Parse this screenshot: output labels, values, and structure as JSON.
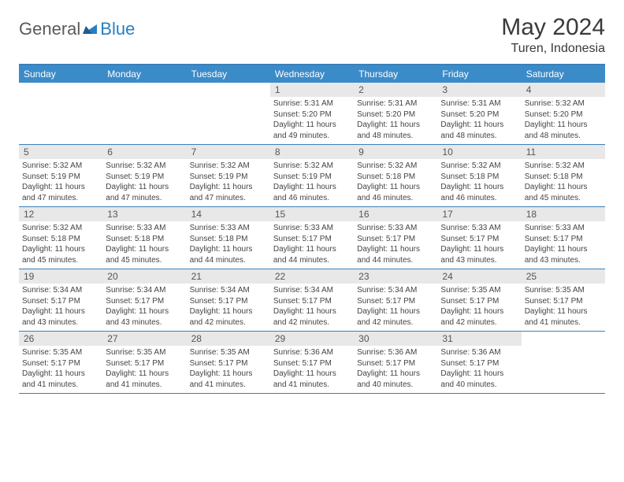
{
  "logo": {
    "text1": "General",
    "text2": "Blue",
    "text1_color": "#5a5a5a",
    "text2_color": "#2a7fbf"
  },
  "title": "May 2024",
  "location": "Turen, Indonesia",
  "colors": {
    "header_bg": "#3b8bc9",
    "header_text": "#ffffff",
    "divider": "#3b7fb8",
    "daynum_bg": "#e8e8e8",
    "daynum_text": "#555555",
    "body_text": "#444444",
    "page_bg": "#ffffff"
  },
  "weekdays": [
    "Sunday",
    "Monday",
    "Tuesday",
    "Wednesday",
    "Thursday",
    "Friday",
    "Saturday"
  ],
  "weeks": [
    [
      null,
      null,
      null,
      {
        "n": "1",
        "sunrise": "5:31 AM",
        "sunset": "5:20 PM",
        "daylight": "11 hours and 49 minutes."
      },
      {
        "n": "2",
        "sunrise": "5:31 AM",
        "sunset": "5:20 PM",
        "daylight": "11 hours and 48 minutes."
      },
      {
        "n": "3",
        "sunrise": "5:31 AM",
        "sunset": "5:20 PM",
        "daylight": "11 hours and 48 minutes."
      },
      {
        "n": "4",
        "sunrise": "5:32 AM",
        "sunset": "5:20 PM",
        "daylight": "11 hours and 48 minutes."
      }
    ],
    [
      {
        "n": "5",
        "sunrise": "5:32 AM",
        "sunset": "5:19 PM",
        "daylight": "11 hours and 47 minutes."
      },
      {
        "n": "6",
        "sunrise": "5:32 AM",
        "sunset": "5:19 PM",
        "daylight": "11 hours and 47 minutes."
      },
      {
        "n": "7",
        "sunrise": "5:32 AM",
        "sunset": "5:19 PM",
        "daylight": "11 hours and 47 minutes."
      },
      {
        "n": "8",
        "sunrise": "5:32 AM",
        "sunset": "5:19 PM",
        "daylight": "11 hours and 46 minutes."
      },
      {
        "n": "9",
        "sunrise": "5:32 AM",
        "sunset": "5:18 PM",
        "daylight": "11 hours and 46 minutes."
      },
      {
        "n": "10",
        "sunrise": "5:32 AM",
        "sunset": "5:18 PM",
        "daylight": "11 hours and 46 minutes."
      },
      {
        "n": "11",
        "sunrise": "5:32 AM",
        "sunset": "5:18 PM",
        "daylight": "11 hours and 45 minutes."
      }
    ],
    [
      {
        "n": "12",
        "sunrise": "5:32 AM",
        "sunset": "5:18 PM",
        "daylight": "11 hours and 45 minutes."
      },
      {
        "n": "13",
        "sunrise": "5:33 AM",
        "sunset": "5:18 PM",
        "daylight": "11 hours and 45 minutes."
      },
      {
        "n": "14",
        "sunrise": "5:33 AM",
        "sunset": "5:18 PM",
        "daylight": "11 hours and 44 minutes."
      },
      {
        "n": "15",
        "sunrise": "5:33 AM",
        "sunset": "5:17 PM",
        "daylight": "11 hours and 44 minutes."
      },
      {
        "n": "16",
        "sunrise": "5:33 AM",
        "sunset": "5:17 PM",
        "daylight": "11 hours and 44 minutes."
      },
      {
        "n": "17",
        "sunrise": "5:33 AM",
        "sunset": "5:17 PM",
        "daylight": "11 hours and 43 minutes."
      },
      {
        "n": "18",
        "sunrise": "5:33 AM",
        "sunset": "5:17 PM",
        "daylight": "11 hours and 43 minutes."
      }
    ],
    [
      {
        "n": "19",
        "sunrise": "5:34 AM",
        "sunset": "5:17 PM",
        "daylight": "11 hours and 43 minutes."
      },
      {
        "n": "20",
        "sunrise": "5:34 AM",
        "sunset": "5:17 PM",
        "daylight": "11 hours and 43 minutes."
      },
      {
        "n": "21",
        "sunrise": "5:34 AM",
        "sunset": "5:17 PM",
        "daylight": "11 hours and 42 minutes."
      },
      {
        "n": "22",
        "sunrise": "5:34 AM",
        "sunset": "5:17 PM",
        "daylight": "11 hours and 42 minutes."
      },
      {
        "n": "23",
        "sunrise": "5:34 AM",
        "sunset": "5:17 PM",
        "daylight": "11 hours and 42 minutes."
      },
      {
        "n": "24",
        "sunrise": "5:35 AM",
        "sunset": "5:17 PM",
        "daylight": "11 hours and 42 minutes."
      },
      {
        "n": "25",
        "sunrise": "5:35 AM",
        "sunset": "5:17 PM",
        "daylight": "11 hours and 41 minutes."
      }
    ],
    [
      {
        "n": "26",
        "sunrise": "5:35 AM",
        "sunset": "5:17 PM",
        "daylight": "11 hours and 41 minutes."
      },
      {
        "n": "27",
        "sunrise": "5:35 AM",
        "sunset": "5:17 PM",
        "daylight": "11 hours and 41 minutes."
      },
      {
        "n": "28",
        "sunrise": "5:35 AM",
        "sunset": "5:17 PM",
        "daylight": "11 hours and 41 minutes."
      },
      {
        "n": "29",
        "sunrise": "5:36 AM",
        "sunset": "5:17 PM",
        "daylight": "11 hours and 41 minutes."
      },
      {
        "n": "30",
        "sunrise": "5:36 AM",
        "sunset": "5:17 PM",
        "daylight": "11 hours and 40 minutes."
      },
      {
        "n": "31",
        "sunrise": "5:36 AM",
        "sunset": "5:17 PM",
        "daylight": "11 hours and 40 minutes."
      },
      null
    ]
  ],
  "labels": {
    "sunrise": "Sunrise:",
    "sunset": "Sunset:",
    "daylight": "Daylight:"
  }
}
